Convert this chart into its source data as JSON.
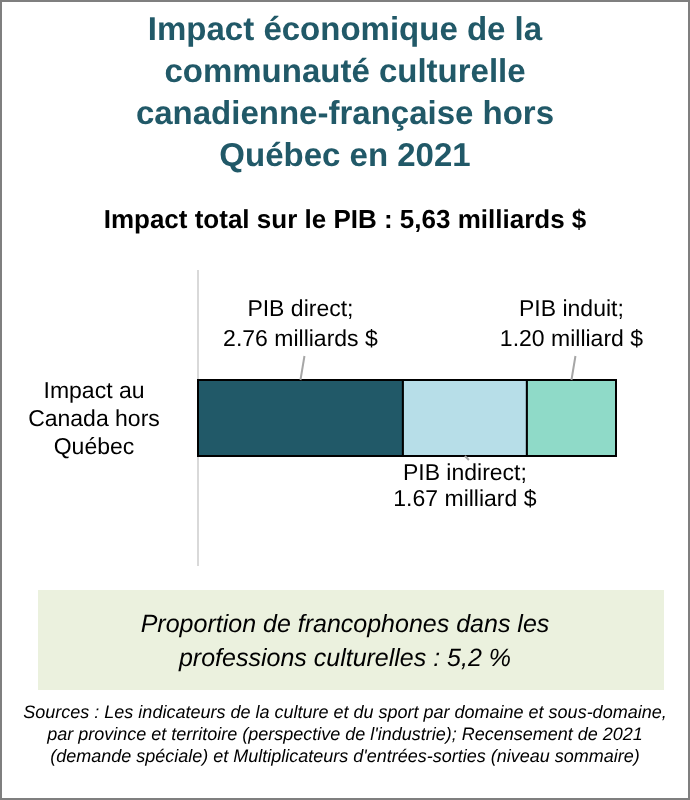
{
  "chart_data": {
    "type": "bar",
    "orientation": "horizontal",
    "stacked": true,
    "title": "Impact économique de la communauté culturelle canadienne-française hors Québec en 2021",
    "subtitle": "Impact total sur le PIB : 5,63 milliards $",
    "categories": [
      "Impact au Canada hors Québec"
    ],
    "series": [
      {
        "name": "PIB direct;",
        "color": "#215968",
        "values": [
          2.76
        ],
        "value_labels": [
          "2.76 milliards $"
        ]
      },
      {
        "name": "PIB indirect;",
        "color": "#b7dee8",
        "values": [
          1.67
        ],
        "value_labels": [
          "1.67 milliard $"
        ]
      },
      {
        "name": "PIB induit;",
        "color": "#8fdac8",
        "values": [
          1.2
        ],
        "value_labels": [
          "1.20 milliard $"
        ]
      }
    ],
    "annotations": [
      "Proportion de francophones dans les professions culturelles : 5,2 %",
      "Sources : Les indicateurs de la culture et du sport par domaine et sous-domaine, par province et territoire (perspective de l'industrie); Recensement de 2021 (demande spéciale) et Multiplicateurs d'entrées-sorties (niveau sommaire)"
    ]
  }
}
